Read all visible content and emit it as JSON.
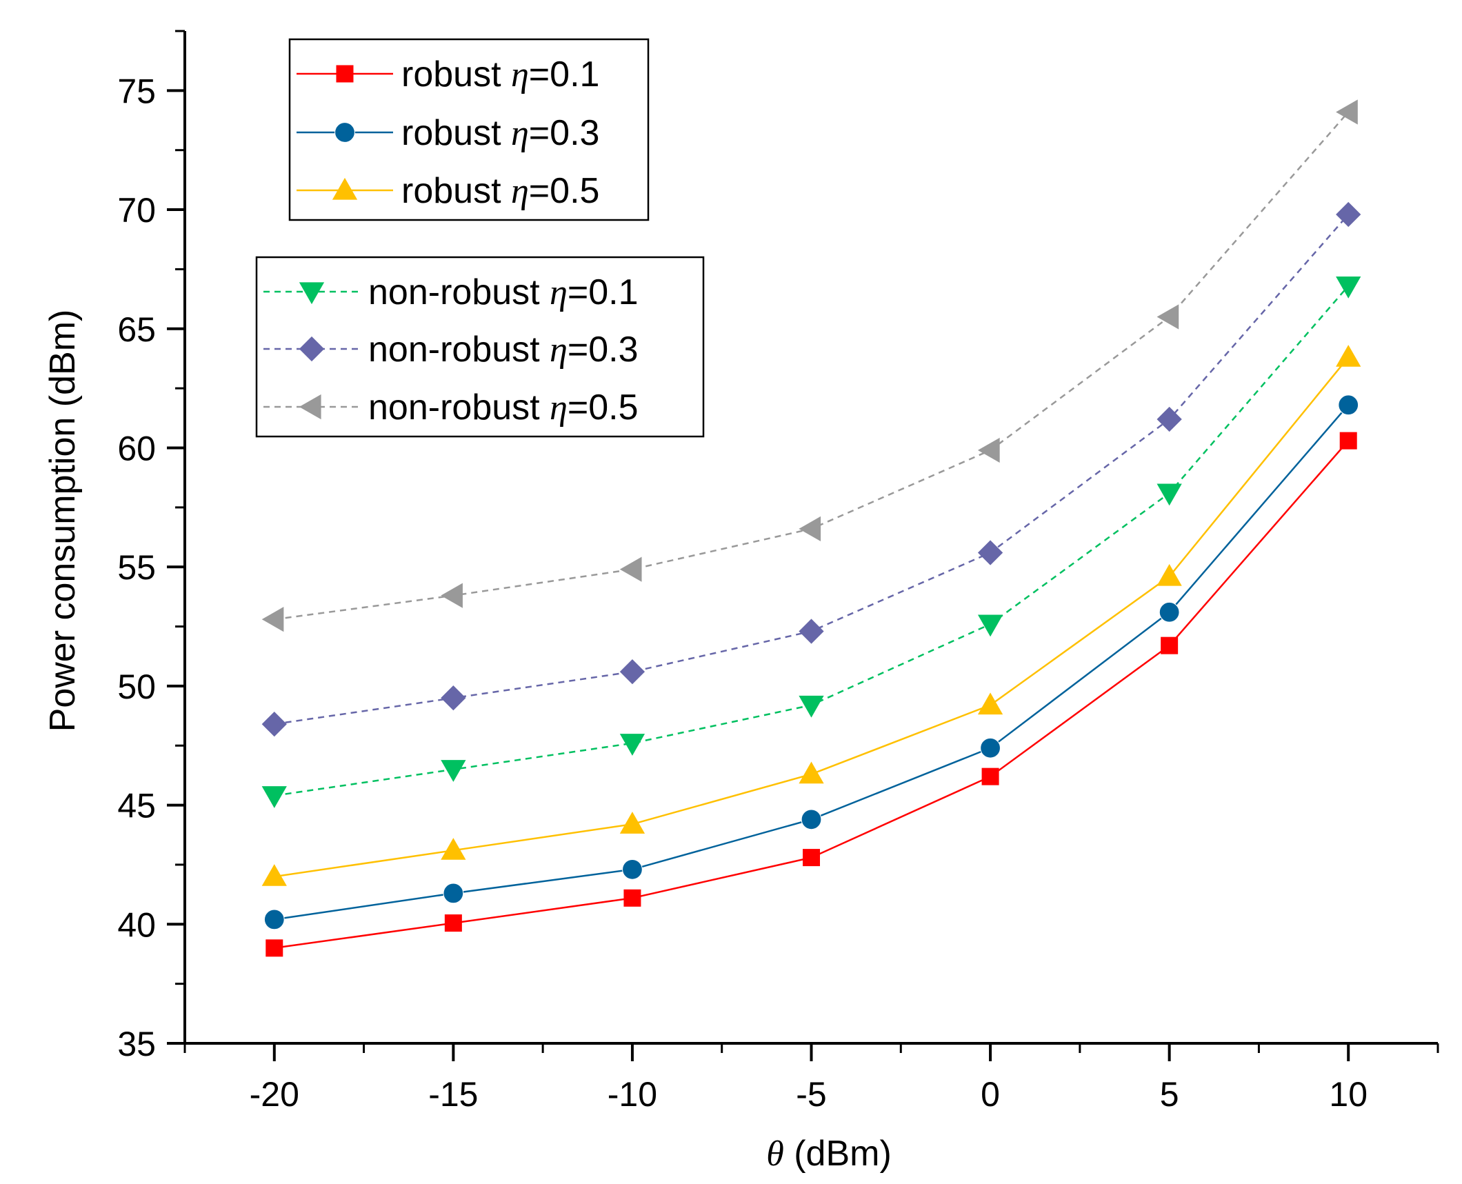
{
  "chart_data": {
    "type": "line",
    "title": "",
    "xlabel": {
      "symbol": "θ",
      "unit": " (dBm)"
    },
    "ylabel": "Power consumption (dBm)",
    "xlim": [
      -22.5,
      12.5
    ],
    "ylim": [
      35,
      77.5
    ],
    "x": [
      -20,
      -15,
      -10,
      -5,
      0,
      5,
      10
    ],
    "x_ticks": [
      "-20",
      "-15",
      "-10",
      "-5",
      "0",
      "5",
      "10"
    ],
    "y_ticks": [
      "35",
      "40",
      "45",
      "50",
      "55",
      "60",
      "65",
      "70",
      "75"
    ],
    "grid": false,
    "legend_groups": [
      {
        "placement": "top-left",
        "series_indices": [
          0,
          1,
          2
        ]
      },
      {
        "placement": "upper-left",
        "series_indices": [
          3,
          4,
          5
        ]
      }
    ],
    "series": [
      {
        "name_prefix": "robust ",
        "eta_symbol": "η",
        "eta_value": "=0.1",
        "color": "#FF0000",
        "marker": "square",
        "dashed": false,
        "values": [
          39.0,
          40.05,
          41.1,
          42.8,
          46.2,
          51.7,
          60.3
        ]
      },
      {
        "name_prefix": "robust ",
        "eta_symbol": "η",
        "eta_value": "=0.3",
        "color": "#00629B",
        "marker": "circle",
        "dashed": false,
        "values": [
          40.2,
          41.3,
          42.3,
          44.4,
          47.4,
          53.1,
          61.8
        ]
      },
      {
        "name_prefix": "robust ",
        "eta_symbol": "η",
        "eta_value": "=0.5",
        "color": "#FFC000",
        "marker": "triangle-up",
        "dashed": false,
        "values": [
          42.0,
          43.1,
          44.2,
          46.3,
          49.2,
          54.6,
          63.8
        ]
      },
      {
        "name_prefix": "non-robust ",
        "eta_symbol": "η",
        "eta_value": "=0.1",
        "color": "#00C060",
        "marker": "triangle-down",
        "dashed": true,
        "values": [
          45.4,
          46.5,
          47.6,
          49.2,
          52.6,
          58.1,
          66.8
        ]
      },
      {
        "name_prefix": "non-robust ",
        "eta_symbol": "η",
        "eta_value": "=0.3",
        "color": "#6666A8",
        "marker": "diamond",
        "dashed": true,
        "values": [
          48.4,
          49.5,
          50.6,
          52.3,
          55.6,
          61.2,
          69.8
        ]
      },
      {
        "name_prefix": "non-robust ",
        "eta_symbol": "η",
        "eta_value": "=0.5",
        "color": "#999999",
        "marker": "triangle-left",
        "dashed": true,
        "values": [
          52.8,
          53.8,
          54.9,
          56.6,
          59.9,
          65.5,
          74.1
        ]
      }
    ]
  }
}
